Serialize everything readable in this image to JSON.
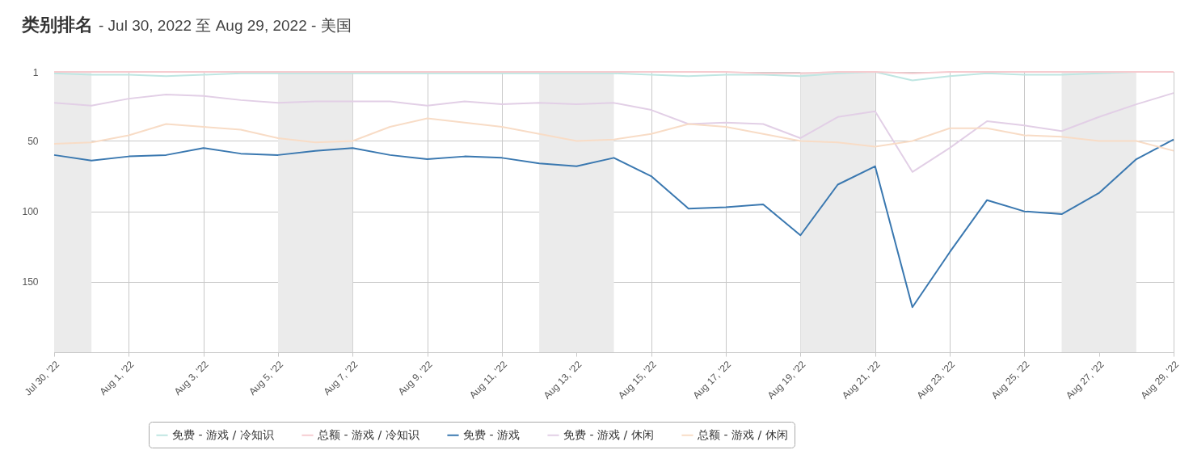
{
  "chart_data": {
    "type": "line",
    "title": "类别排名",
    "subtitle": "- Jul 30, 2022 至 Aug 29, 2022 - 美国",
    "x": [
      "2022-07-30",
      "2022-07-31",
      "2022-08-01",
      "2022-08-02",
      "2022-08-03",
      "2022-08-04",
      "2022-08-05",
      "2022-08-06",
      "2022-08-07",
      "2022-08-08",
      "2022-08-09",
      "2022-08-10",
      "2022-08-11",
      "2022-08-12",
      "2022-08-13",
      "2022-08-14",
      "2022-08-15",
      "2022-08-16",
      "2022-08-17",
      "2022-08-18",
      "2022-08-19",
      "2022-08-20",
      "2022-08-21",
      "2022-08-22",
      "2022-08-23",
      "2022-08-24",
      "2022-08-25",
      "2022-08-26",
      "2022-08-27",
      "2022-08-28",
      "2022-08-29"
    ],
    "series": [
      {
        "name": "免费 - 游戏 / 冷知识",
        "color": "#bfe6e2",
        "values": [
          2,
          3,
          3,
          4,
          3,
          2,
          2,
          2,
          2,
          2,
          2,
          2,
          2,
          2,
          2,
          2,
          3,
          4,
          3,
          3,
          4,
          2,
          1,
          7,
          4,
          2,
          3,
          3,
          2,
          1,
          1
        ]
      },
      {
        "name": "总额 - 游戏 / 冷知识",
        "color": "#f6ccd0",
        "values": [
          1,
          1,
          1,
          1,
          1,
          1,
          1,
          1,
          1,
          1,
          1,
          1,
          1,
          1,
          1,
          1,
          1,
          1,
          1,
          2,
          2,
          1,
          1,
          2,
          1,
          1,
          1,
          1,
          1,
          1,
          1
        ]
      },
      {
        "name": "免费 - 游戏",
        "color": "#3a78b0",
        "values": [
          60,
          64,
          61,
          60,
          55,
          59,
          60,
          57,
          55,
          60,
          63,
          61,
          62,
          66,
          68,
          62,
          75,
          98,
          97,
          95,
          117,
          81,
          68,
          168,
          129,
          92,
          100,
          102,
          87,
          63,
          49
        ]
      },
      {
        "name": "免费 - 游戏 / 休闲",
        "color": "#e2cfe6",
        "values": [
          23,
          25,
          20,
          17,
          18,
          21,
          23,
          22,
          22,
          22,
          25,
          22,
          24,
          23,
          24,
          23,
          28,
          38,
          37,
          38,
          48,
          33,
          29,
          72,
          55,
          36,
          39,
          43,
          33,
          24,
          16
        ]
      },
      {
        "name": "总额 - 游戏 / 休闲",
        "color": "#f8dcc6",
        "values": [
          52,
          51,
          46,
          38,
          40,
          42,
          48,
          51,
          50,
          40,
          34,
          37,
          40,
          45,
          50,
          49,
          45,
          38,
          40,
          45,
          50,
          51,
          54,
          50,
          41,
          41,
          46,
          47,
          50,
          50,
          57
        ]
      }
    ],
    "xlim": [
      "2022-07-30",
      "2022-08-29"
    ],
    "xticks": [
      {
        "value": "2022-07-30",
        "label": "Jul 30, '22"
      },
      {
        "value": "2022-08-01",
        "label": "Aug 1, '22"
      },
      {
        "value": "2022-08-03",
        "label": "Aug 3, '22"
      },
      {
        "value": "2022-08-05",
        "label": "Aug 5, '22"
      },
      {
        "value": "2022-08-07",
        "label": "Aug 7, '22"
      },
      {
        "value": "2022-08-09",
        "label": "Aug 9, '22"
      },
      {
        "value": "2022-08-11",
        "label": "Aug 11, '22"
      },
      {
        "value": "2022-08-13",
        "label": "Aug 13, '22"
      },
      {
        "value": "2022-08-15",
        "label": "Aug 15, '22"
      },
      {
        "value": "2022-08-17",
        "label": "Aug 17, '22"
      },
      {
        "value": "2022-08-19",
        "label": "Aug 19, '22"
      },
      {
        "value": "2022-08-21",
        "label": "Aug 21, '22"
      },
      {
        "value": "2022-08-23",
        "label": "Aug 23, '22"
      },
      {
        "value": "2022-08-25",
        "label": "Aug 25, '22"
      },
      {
        "value": "2022-08-27",
        "label": "Aug 27, '22"
      },
      {
        "value": "2022-08-29",
        "label": "Aug 29, '22"
      }
    ],
    "ylim": [
      200,
      1
    ],
    "yticks": [
      1,
      50,
      100,
      150
    ],
    "bands": [
      {
        "axis": "x",
        "from": "2022-07-30",
        "to": "2022-07-31",
        "color": "#ebebeb"
      },
      {
        "axis": "x",
        "from": "2022-08-05",
        "to": "2022-08-07",
        "color": "#ebebeb"
      },
      {
        "axis": "x",
        "from": "2022-08-12",
        "to": "2022-08-14",
        "color": "#ebebeb"
      },
      {
        "axis": "x",
        "from": "2022-08-19",
        "to": "2022-08-21",
        "color": "#ebebeb"
      },
      {
        "axis": "x",
        "from": "2022-08-26",
        "to": "2022-08-28",
        "color": "#ebebeb"
      }
    ],
    "grid": true,
    "legend": "bottom",
    "marker": "none",
    "line_style": "solid"
  }
}
